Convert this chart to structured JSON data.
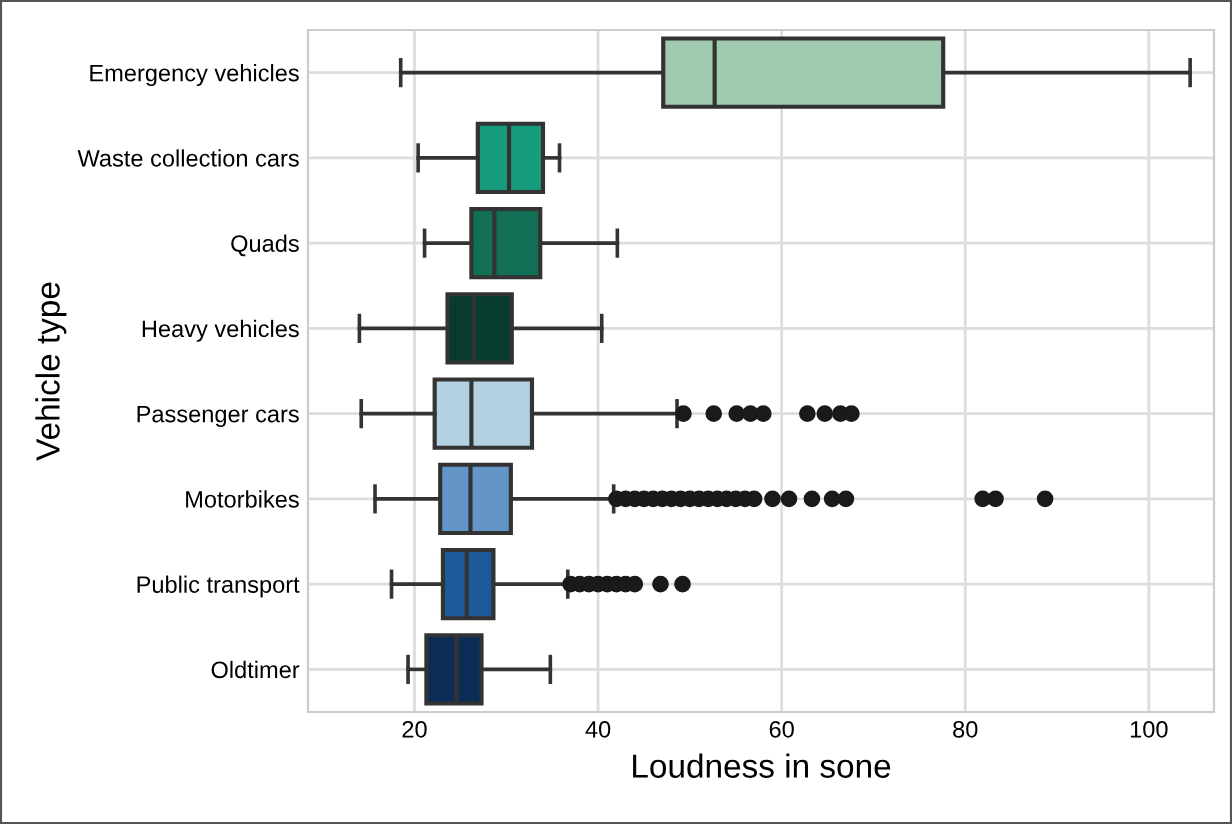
{
  "chart_data": {
    "type": "box",
    "orientation": "horizontal",
    "xlabel": "Loudness in sone",
    "ylabel": "Vehicle type",
    "categories": [
      "Emergency vehicles",
      "Waste collection cars",
      "Quads",
      "Heavy vehicles",
      "Passenger cars",
      "Motorbikes",
      "Public transport",
      "Oldtimer"
    ],
    "colors": [
      "#a1cbb0",
      "#179c7d",
      "#126e55",
      "#073b2e",
      "#b3d1e3",
      "#6495c8",
      "#1c5a9c",
      "#0c2d55"
    ],
    "boxes": [
      {
        "low": 18.5,
        "q1": 47.1,
        "median": 52.7,
        "q3": 77.6,
        "high": 104.5
      },
      {
        "low": 20.4,
        "q1": 26.9,
        "median": 30.3,
        "q3": 34.0,
        "high": 35.8
      },
      {
        "low": 21.1,
        "q1": 26.2,
        "median": 28.7,
        "q3": 33.7,
        "high": 42.1
      },
      {
        "low": 14.0,
        "q1": 23.6,
        "median": 26.5,
        "q3": 30.6,
        "high": 40.4
      },
      {
        "low": 14.2,
        "q1": 22.2,
        "median": 26.2,
        "q3": 32.8,
        "high": 48.6,
        "outliers": [
          49.3,
          52.6,
          55.1,
          56.6,
          58.0,
          62.8,
          64.7,
          66.4,
          67.6
        ]
      },
      {
        "low": 15.7,
        "q1": 22.8,
        "median": 26.1,
        "q3": 30.5,
        "high": 41.7,
        "outliers": [
          42,
          43,
          44,
          45,
          46,
          47,
          48,
          49,
          50,
          51,
          52,
          53,
          54,
          55,
          56,
          57,
          59.0,
          60.8,
          63.3,
          65.5,
          67.0,
          81.9,
          83.3,
          88.7
        ]
      },
      {
        "low": 17.5,
        "q1": 23.1,
        "median": 25.7,
        "q3": 28.6,
        "high": 36.7,
        "outliers": [
          37,
          38,
          39,
          40,
          41,
          42,
          43,
          44,
          46.8,
          49.2
        ]
      },
      {
        "low": 19.3,
        "q1": 21.3,
        "median": 24.6,
        "q3": 27.3,
        "high": 34.8
      }
    ],
    "xlim": [
      8.4,
      107.1
    ],
    "xticks": [
      20,
      40,
      60,
      80,
      100
    ],
    "grid": true
  }
}
